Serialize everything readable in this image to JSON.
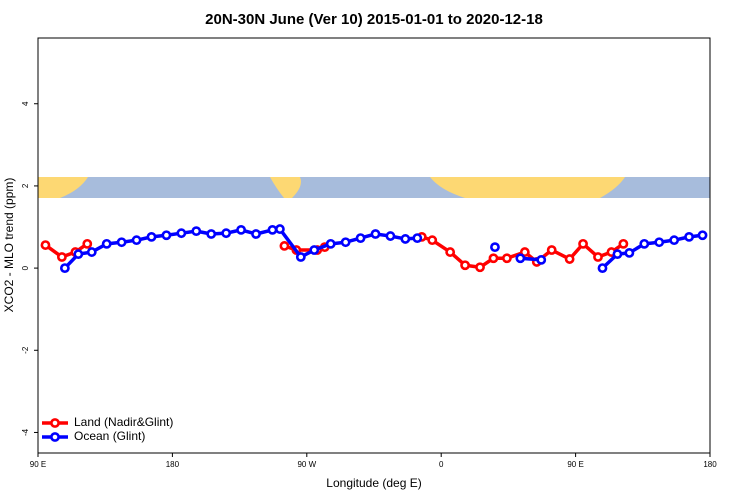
{
  "chart_data": {
    "type": "line",
    "title": "20N-30N June (Ver 10)   2015-01-01 to 2020-12-18",
    "x_label": "Longitude (deg E)",
    "y_label": "XCO2 - MLO trend (ppm)",
    "xlim": [
      90,
      540
    ],
    "xticks": [
      {
        "value": 90,
        "label": "90 E"
      },
      180,
      {
        "value": 270,
        "label": "90 W"
      },
      {
        "value": 360,
        "label": "0"
      },
      {
        "value": 450,
        "label": "90 E"
      },
      {
        "value": 540,
        "label": "180"
      }
    ],
    "ylim": [
      -4.5,
      5.6
    ],
    "yticks": [
      -4,
      -2,
      0,
      2,
      4
    ],
    "legend": "bottom-left",
    "series": [
      {
        "name": "Land (Nadir&Glint)",
        "color": "#ff0000",
        "x": [
          95,
          106,
          115,
          123,
          null,
          255,
          263,
          277,
          282,
          null,
          347,
          354,
          366,
          376,
          386,
          395,
          404,
          416,
          424,
          434,
          446,
          455,
          465,
          474,
          482
        ],
        "values": [
          0.56,
          0.27,
          0.39,
          0.59,
          null,
          0.54,
          0.44,
          0.44,
          0.51,
          null,
          0.76,
          0.68,
          0.39,
          0.07,
          0.02,
          0.24,
          0.24,
          0.39,
          0.15,
          0.44,
          0.22,
          0.59,
          0.27,
          0.39,
          0.59
        ]
      },
      {
        "name": "Ocean (Glint)",
        "color": "#0000ff",
        "x": [
          108,
          117,
          126,
          136,
          146,
          156,
          166,
          176,
          186,
          196,
          206,
          216,
          226,
          236,
          247,
          252,
          266,
          275,
          286,
          296,
          306,
          316,
          326,
          336,
          344,
          null,
          396,
          null,
          413,
          427,
          null,
          468,
          478,
          486,
          496,
          506,
          516,
          526,
          535
        ],
        "values": [
          0,
          0.34,
          0.39,
          0.59,
          0.63,
          0.68,
          0.76,
          0.8,
          0.85,
          0.9,
          0.83,
          0.85,
          0.93,
          0.83,
          0.93,
          0.95,
          0.27,
          0.44,
          0.59,
          0.63,
          0.73,
          0.83,
          0.78,
          0.71,
          0.73,
          null,
          0.51,
          null,
          0.24,
          0.2,
          null,
          0,
          0.34,
          0.37,
          0.59,
          0.63,
          0.68,
          0.76,
          0.8
        ]
      }
    ]
  }
}
